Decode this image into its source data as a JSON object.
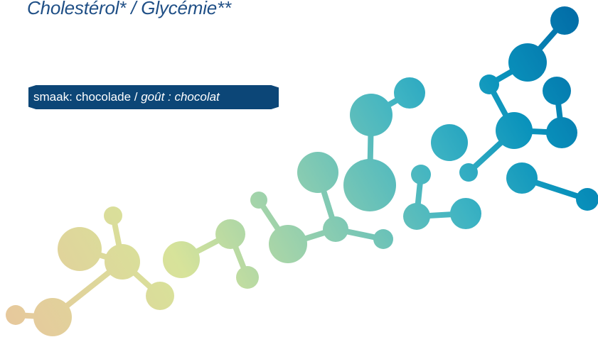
{
  "headline": "Cholestérol* / Glycémie**",
  "flavor": {
    "nl": "smaak: chocolade / ",
    "fr": "goût : chocolat"
  },
  "colors": {
    "headline": "#1f4f86",
    "badge": "#0c4677",
    "molecule_start": "#e4c89a",
    "molecule_mid": "#58b9bb",
    "molecule_end": "#0064a0"
  },
  "graphic": {
    "name": "molecule-network",
    "description_icon": "molecule-decoration"
  }
}
